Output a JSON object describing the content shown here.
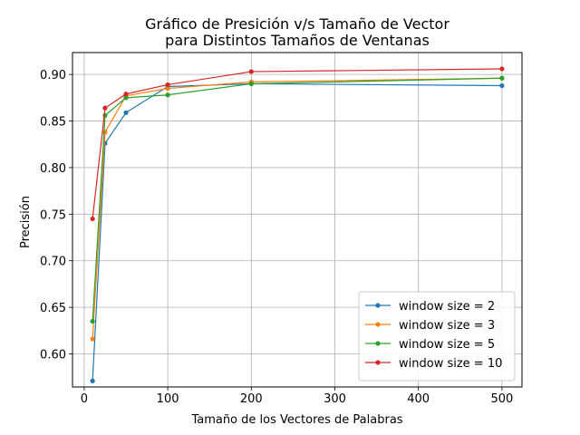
{
  "chart_data": {
    "type": "line",
    "title_line1": "Gráfico de Presición v/s Tamaño de Vector",
    "title_line2": "para Distintos Tamaños de Ventanas",
    "xlabel": "Tamaño de los Vectores de Palabras",
    "ylabel": "Precisión",
    "x": [
      10,
      25,
      50,
      100,
      200,
      500
    ],
    "xlim": [
      -14,
      524
    ],
    "ylim": [
      0.5645,
      0.9235
    ],
    "xticks": [
      0,
      100,
      200,
      300,
      400,
      500
    ],
    "xtick_labels": [
      "0",
      "100",
      "200",
      "300",
      "400",
      "500"
    ],
    "yticks": [
      0.6,
      0.65,
      0.7,
      0.75,
      0.8,
      0.85,
      0.9
    ],
    "ytick_labels": [
      "0.60",
      "0.65",
      "0.70",
      "0.75",
      "0.80",
      "0.85",
      "0.90"
    ],
    "grid": true,
    "legend_position": "lower-right",
    "series": [
      {
        "name": "window size = 2",
        "color": "#1f77b4",
        "values": [
          0.571,
          0.826,
          0.859,
          0.887,
          0.89,
          0.888
        ]
      },
      {
        "name": "window size = 3",
        "color": "#ff7f0e",
        "values": [
          0.616,
          0.838,
          0.877,
          0.885,
          0.892,
          0.896
        ]
      },
      {
        "name": "window size = 5",
        "color": "#2ca02c",
        "values": [
          0.635,
          0.856,
          0.875,
          0.878,
          0.89,
          0.896
        ]
      },
      {
        "name": "window size = 10",
        "color": "#d62728",
        "values": [
          0.745,
          0.864,
          0.879,
          0.889,
          0.903,
          0.906
        ]
      }
    ]
  }
}
